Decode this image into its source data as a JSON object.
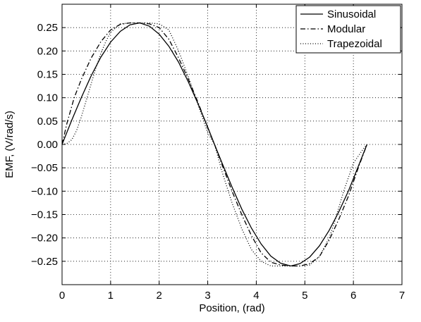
{
  "chart_data": {
    "type": "line",
    "title": "",
    "xlabel": "Position, (rad)",
    "ylabel": "EMF, (V/rad/s)",
    "xlim": [
      0,
      7
    ],
    "ylim": [
      -0.3,
      0.3
    ],
    "x_ticks": [
      "0",
      "1",
      "2",
      "3",
      "4",
      "5",
      "6",
      "7"
    ],
    "y_ticks": [
      "−0.25",
      "−0.20",
      "−0.15",
      "−0.10",
      "−0.05",
      "0.00",
      "0.05",
      "0.10",
      "0.15",
      "0.20",
      "0.25"
    ],
    "grid": true,
    "legend_position": "top-right",
    "series": [
      {
        "name": "Sinusoidal",
        "line_style": "solid",
        "color": "#000000",
        "x": [
          0,
          0.2,
          0.4,
          0.6,
          0.8,
          1.0,
          1.2,
          1.4,
          1.6,
          1.8,
          2.0,
          2.2,
          2.4,
          2.6,
          2.8,
          3.0,
          3.14,
          3.3,
          3.5,
          3.7,
          3.9,
          4.1,
          4.3,
          4.5,
          4.71,
          4.9,
          5.1,
          5.3,
          5.5,
          5.7,
          5.9,
          6.1,
          6.28
        ],
        "y": [
          0.0,
          0.052,
          0.101,
          0.147,
          0.187,
          0.219,
          0.242,
          0.256,
          0.26,
          0.253,
          0.236,
          0.21,
          0.176,
          0.134,
          0.087,
          0.037,
          0.0,
          -0.041,
          -0.091,
          -0.138,
          -0.179,
          -0.213,
          -0.239,
          -0.254,
          -0.26,
          -0.255,
          -0.241,
          -0.217,
          -0.184,
          -0.144,
          -0.099,
          -0.047,
          0.0
        ]
      },
      {
        "name": "Modular",
        "line_style": "dashdot",
        "color": "#000000",
        "x": [
          0,
          0.1,
          0.25,
          0.4,
          0.6,
          0.8,
          1.0,
          1.2,
          1.4,
          1.6,
          1.8,
          2.0,
          2.2,
          2.4,
          2.6,
          2.8,
          3.0,
          3.14,
          3.3,
          3.5,
          3.7,
          3.9,
          4.1,
          4.3,
          4.5,
          4.7,
          4.9,
          5.1,
          5.3,
          5.5,
          5.7,
          5.9,
          6.1,
          6.28
        ],
        "y": [
          0.0,
          0.045,
          0.1,
          0.14,
          0.185,
          0.22,
          0.245,
          0.257,
          0.26,
          0.26,
          0.258,
          0.25,
          0.225,
          0.185,
          0.14,
          0.09,
          0.035,
          0.0,
          -0.045,
          -0.1,
          -0.15,
          -0.195,
          -0.232,
          -0.252,
          -0.258,
          -0.26,
          -0.26,
          -0.255,
          -0.24,
          -0.205,
          -0.16,
          -0.11,
          -0.05,
          0.0
        ]
      },
      {
        "name": "Trapezoidal",
        "line_style": "dotted",
        "color": "#000000",
        "x": [
          0,
          0.1,
          0.2,
          0.3,
          0.4,
          0.5,
          0.6,
          0.7,
          0.8,
          0.9,
          1.0,
          1.2,
          1.4,
          1.6,
          1.8,
          2.0,
          2.2,
          2.4,
          2.6,
          2.8,
          3.0,
          3.14,
          3.3,
          3.5,
          3.7,
          3.9,
          4.1,
          4.3,
          4.5,
          4.7,
          4.9,
          5.1,
          5.3,
          5.5,
          5.6,
          5.8,
          6.0,
          6.2,
          6.28
        ],
        "y": [
          0.0,
          0.002,
          0.01,
          0.03,
          0.06,
          0.095,
          0.13,
          0.165,
          0.195,
          0.22,
          0.24,
          0.258,
          0.26,
          0.26,
          0.26,
          0.258,
          0.245,
          0.2,
          0.145,
          0.085,
          0.025,
          0.0,
          -0.06,
          -0.125,
          -0.18,
          -0.225,
          -0.25,
          -0.26,
          -0.26,
          -0.26,
          -0.26,
          -0.258,
          -0.24,
          -0.2,
          -0.17,
          -0.1,
          -0.04,
          -0.01,
          0.0
        ]
      }
    ]
  }
}
